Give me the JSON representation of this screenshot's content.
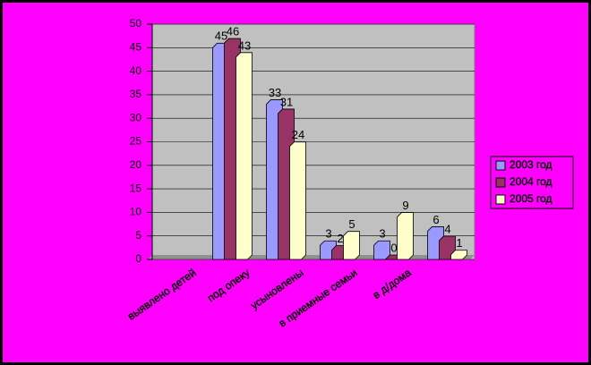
{
  "chart_data": {
    "type": "bar",
    "categories": [
      "выявлено детей",
      "под опеку",
      "усыновлены",
      "в приемные семьи",
      "в д/дома",
      null
    ],
    "series": [
      {
        "name": "2003 год",
        "color": "#9999ff",
        "values": [
          null,
          45,
          33,
          3,
          3,
          6
        ]
      },
      {
        "name": "2004 год",
        "color": "#993366",
        "values": [
          null,
          46,
          31,
          2,
          0,
          4
        ]
      },
      {
        "name": "2005 год",
        "color": "#ffffcc",
        "values": [
          null,
          43,
          24,
          5,
          9,
          1
        ]
      }
    ],
    "ylim": [
      0,
      50
    ],
    "yticks": [
      0,
      5,
      10,
      15,
      20,
      25,
      30,
      35,
      40,
      45,
      50
    ],
    "grid": true,
    "legend": "right"
  }
}
